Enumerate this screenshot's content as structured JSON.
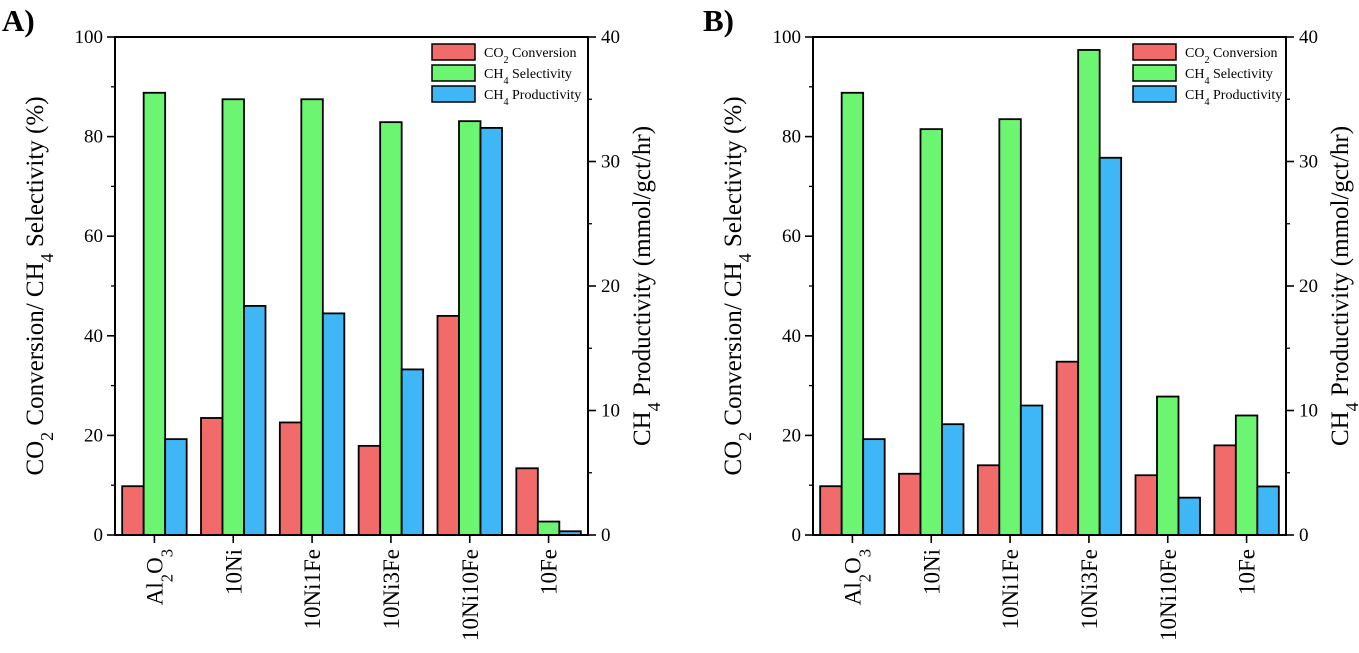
{
  "chart_data": [
    {
      "panel_label": "A)",
      "type": "bar",
      "categories": [
        "Al2O3",
        "10Ni",
        "10Ni1Fe",
        "10Ni3Fe",
        "10Ni10Fe",
        "10Fe"
      ],
      "series": [
        {
          "name": "CO2 Conversion",
          "axis": "left",
          "color": "#f26b6b",
          "values": [
            9.8,
            23.5,
            22.6,
            17.9,
            44.0,
            13.4
          ]
        },
        {
          "name": "CH4 Selectivity",
          "axis": "left",
          "color": "#6cf571",
          "values": [
            88.8,
            87.5,
            87.5,
            82.9,
            83.1,
            2.7
          ]
        },
        {
          "name": "CH4 Productivity",
          "axis": "right",
          "color": "#3fb6f5",
          "values": [
            7.7,
            18.4,
            17.8,
            13.3,
            32.7,
            0.3
          ]
        }
      ],
      "ylabel": "CO2 Conversion/ CH4 Selectivity (%)",
      "y2label": "CH4 Productivity (mmol/gct/hr)",
      "ylim": [
        0,
        100
      ],
      "y2lim": [
        0,
        40
      ],
      "yticks": [
        0,
        20,
        40,
        60,
        80,
        100
      ],
      "y2ticks": [
        0,
        10,
        20,
        30,
        40
      ],
      "legend": "top-right",
      "grid": false
    },
    {
      "panel_label": "B)",
      "type": "bar",
      "categories": [
        "Al2O3",
        "10Ni",
        "10Ni1Fe",
        "10Ni3Fe",
        "10Ni10Fe",
        "10Fe"
      ],
      "series": [
        {
          "name": "CO2 Conversion",
          "axis": "left",
          "color": "#f26b6b",
          "values": [
            9.8,
            12.3,
            14.0,
            34.8,
            12.0,
            18.0
          ]
        },
        {
          "name": "CH4 Selectivity",
          "axis": "left",
          "color": "#6cf571",
          "values": [
            88.8,
            81.5,
            83.5,
            97.4,
            27.8,
            24.0
          ]
        },
        {
          "name": "CH4 Productivity",
          "axis": "right",
          "color": "#3fb6f5",
          "values": [
            7.7,
            8.9,
            10.4,
            30.3,
            3.0,
            3.9
          ]
        }
      ],
      "ylabel": "CO2 Conversion/ CH4 Selectivity (%)",
      "y2label": "CH4 Productivity (mmol/gct/hr)",
      "ylim": [
        0,
        100
      ],
      "y2lim": [
        0,
        40
      ],
      "yticks": [
        0,
        20,
        40,
        60,
        80,
        100
      ],
      "y2ticks": [
        0,
        10,
        20,
        30,
        40
      ],
      "legend": "top-right",
      "grid": false
    }
  ]
}
